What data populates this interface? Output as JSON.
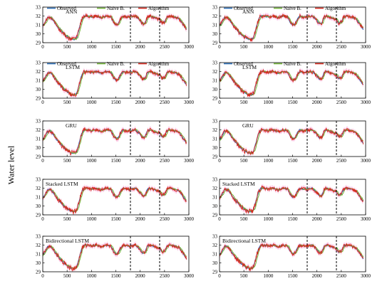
{
  "figure": {
    "ylabel": "Water level"
  },
  "colors": {
    "observed": "#2d6fb7",
    "naive": "#73b53a",
    "algorithm": "#d62a1e",
    "band": "#f7a8d8",
    "split": "#000000"
  },
  "chart_data": [
    {
      "type": "line",
      "title": "ANN",
      "column": "left",
      "row": 0,
      "legend": true,
      "xlim": [
        0,
        3000
      ],
      "ylim": [
        29,
        33
      ],
      "xticks": [
        0,
        500,
        1000,
        1500,
        2000,
        2500,
        3000
      ],
      "yticks": [
        29,
        30,
        31,
        32,
        33
      ],
      "splits": [
        1800,
        2400
      ],
      "series": [
        {
          "name": "Observed"
        },
        {
          "name": "Naive B."
        },
        {
          "name": "Algorithm"
        }
      ]
    },
    {
      "type": "line",
      "title": "ANN",
      "column": "right",
      "row": 0,
      "legend": true,
      "xlim": [
        0,
        3000
      ],
      "ylim": [
        29,
        33
      ],
      "xticks": [
        0,
        500,
        1000,
        1500,
        2000,
        2500,
        3000
      ],
      "yticks": [
        29,
        30,
        31,
        32,
        33
      ],
      "splits": [
        1800,
        2400
      ],
      "series": [
        {
          "name": "Observed"
        },
        {
          "name": "Naive B."
        },
        {
          "name": "Algorithm"
        }
      ]
    },
    {
      "type": "line",
      "title": "LSTM",
      "column": "left",
      "row": 1,
      "legend": true,
      "xlim": [
        0,
        3000
      ],
      "ylim": [
        29,
        33
      ],
      "xticks": [
        0,
        500,
        1000,
        1500,
        2000,
        2500,
        3000
      ],
      "yticks": [
        29,
        30,
        31,
        32,
        33
      ],
      "splits": [
        1800,
        2400
      ],
      "series": [
        {
          "name": "Observed"
        },
        {
          "name": "Naive B."
        },
        {
          "name": "Algorithm"
        }
      ]
    },
    {
      "type": "line",
      "title": "LSTM",
      "column": "right",
      "row": 1,
      "legend": true,
      "xlim": [
        0,
        3000
      ],
      "ylim": [
        29,
        33
      ],
      "xticks": [
        0,
        500,
        1000,
        1500,
        2000,
        2500,
        3000
      ],
      "yticks": [
        29,
        30,
        31,
        32,
        33
      ],
      "splits": [
        1800,
        2400
      ],
      "series": [
        {
          "name": "Observed"
        },
        {
          "name": "Naive B."
        },
        {
          "name": "Algorithm"
        }
      ]
    },
    {
      "type": "line",
      "title": "GRU",
      "column": "left",
      "row": 2,
      "legend": false,
      "xlim": [
        0,
        3000
      ],
      "ylim": [
        29,
        33
      ],
      "xticks": [
        0,
        500,
        1000,
        1500,
        2000,
        2500,
        3000
      ],
      "yticks": [
        29,
        30,
        31,
        32,
        33
      ],
      "splits": [
        1800,
        2400
      ]
    },
    {
      "type": "line",
      "title": "GRU",
      "column": "right",
      "row": 2,
      "legend": false,
      "xlim": [
        0,
        3000
      ],
      "ylim": [
        29,
        33
      ],
      "xticks": [
        0,
        500,
        1000,
        1500,
        2000,
        2500,
        3000
      ],
      "yticks": [
        29,
        30,
        31,
        32,
        33
      ],
      "splits": [
        1800,
        2400
      ]
    },
    {
      "type": "line",
      "title": "Stacked LSTM",
      "column": "left",
      "row": 3,
      "legend": false,
      "xlim": [
        0,
        3000
      ],
      "ylim": [
        29,
        33
      ],
      "xticks": [
        0,
        500,
        1000,
        1500,
        2000,
        2500,
        3000
      ],
      "yticks": [
        29,
        30,
        31,
        32,
        33
      ],
      "splits": [
        1800,
        2400
      ]
    },
    {
      "type": "line",
      "title": "Stacked LSTM",
      "column": "right",
      "row": 3,
      "legend": false,
      "xlim": [
        0,
        3000
      ],
      "ylim": [
        29,
        33
      ],
      "xticks": [
        0,
        500,
        1000,
        1500,
        2000,
        2500,
        3000
      ],
      "yticks": [
        29,
        30,
        31,
        32,
        33
      ],
      "splits": [
        1800,
        2400
      ]
    },
    {
      "type": "line",
      "title": "Bidirectional LSTM",
      "column": "left",
      "row": 4,
      "legend": false,
      "xlim": [
        0,
        3000
      ],
      "ylim": [
        29,
        33
      ],
      "xticks": [
        0,
        500,
        1000,
        1500,
        2000,
        2500,
        3000
      ],
      "yticks": [
        29,
        30,
        31,
        32,
        33
      ],
      "splits": [
        1800,
        2400
      ]
    },
    {
      "type": "line",
      "title": "Bidirectional LSTM",
      "column": "right",
      "row": 4,
      "legend": false,
      "xlim": [
        0,
        3000
      ],
      "ylim": [
        29,
        33
      ],
      "xticks": [
        0,
        500,
        1000,
        1500,
        2000,
        2500,
        3000
      ],
      "yticks": [
        29,
        30,
        31,
        32,
        33
      ],
      "splits": [
        1800,
        2400
      ]
    }
  ],
  "water_level_profile": {
    "x": [
      0,
      50,
      100,
      150,
      200,
      250,
      300,
      350,
      400,
      450,
      500,
      550,
      600,
      650,
      700,
      750,
      800,
      850,
      900,
      1000,
      1100,
      1200,
      1300,
      1400,
      1450,
      1500,
      1550,
      1600,
      1650,
      1700,
      1800,
      1900,
      2000,
      2050,
      2100,
      2150,
      2200,
      2300,
      2400,
      2450,
      2500,
      2550,
      2600,
      2700,
      2800,
      2850,
      2900,
      2950
    ],
    "y": [
      30.9,
      31.3,
      31.8,
      31.9,
      31.6,
      31.2,
      30.8,
      30.5,
      30.2,
      29.9,
      29.7,
      29.5,
      29.4,
      29.35,
      29.6,
      30.6,
      31.6,
      32.0,
      32.0,
      31.9,
      32.0,
      31.8,
      32.0,
      31.9,
      31.3,
      31.0,
      31.1,
      31.7,
      32.0,
      31.9,
      31.9,
      32.0,
      31.5,
      31.1,
      31.2,
      31.9,
      32.0,
      31.8,
      31.6,
      31.2,
      31.3,
      31.9,
      32.0,
      31.9,
      31.7,
      31.3,
      30.9,
      30.5
    ]
  }
}
